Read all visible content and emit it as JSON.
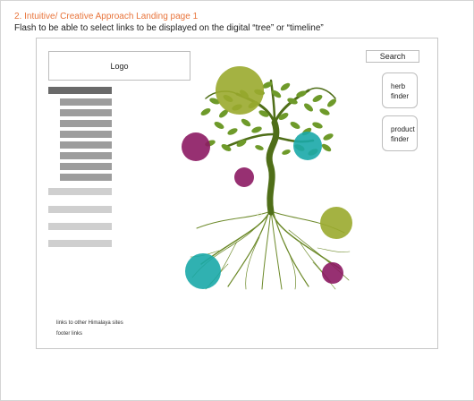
{
  "header": {
    "title": "2. Intuitive/ Creative Approach Landing page 1",
    "subtitle": "Flash to be able to select links to be displayed on the digital “tree” or “timeline”"
  },
  "logo_label": "Logo",
  "search_label": "Search",
  "side_buttons": [
    {
      "line1": "herb",
      "line2": "finder"
    },
    {
      "line1": "product",
      "line2": "finder"
    }
  ],
  "footer": {
    "links_label": "links to other Himalaya sites",
    "footer_label": "footer links"
  },
  "colors": {
    "heading": "#e8743b",
    "olive": "#9aaa2e",
    "magenta": "#8c1a63",
    "teal": "#1aa9a9",
    "tree_green": "#5a7a1e",
    "nav_dark": "#6a6a6a",
    "nav_mid": "#9d9d9d",
    "nav_light": "#cfcfcf"
  }
}
